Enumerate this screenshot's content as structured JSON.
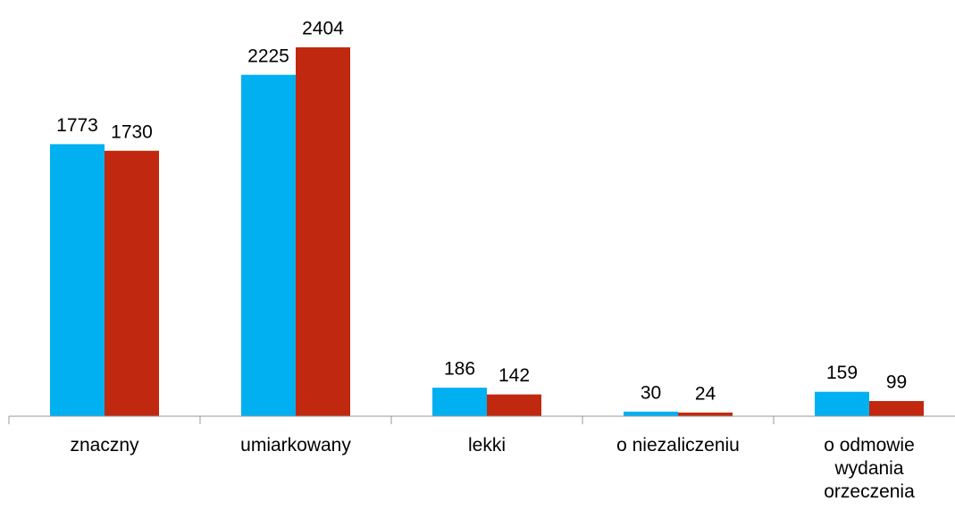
{
  "chart_data": {
    "type": "bar",
    "categories": [
      "znaczny",
      "umiarkowany",
      "lekki",
      "o niezaliczeniu",
      "o odmowie wydania orzeczenia"
    ],
    "series": [
      {
        "color": "#00b0f0",
        "values": [
          1773,
          2225,
          186,
          30,
          159
        ]
      },
      {
        "color": "#c0290f",
        "values": [
          1730,
          2404,
          142,
          24,
          99
        ]
      }
    ],
    "ylim": [
      0,
      2500
    ]
  }
}
